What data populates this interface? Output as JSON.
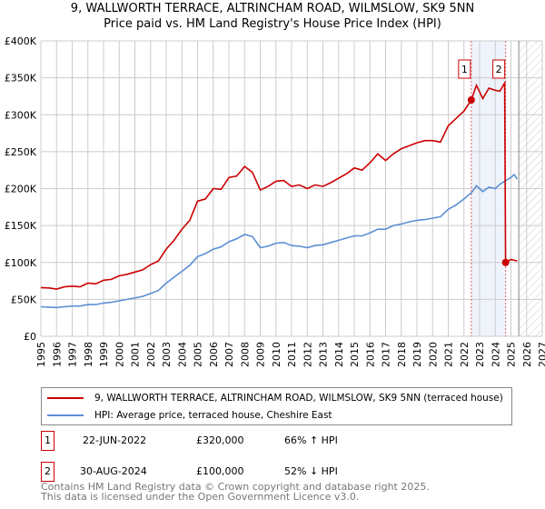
{
  "chart_data": {
    "type": "line",
    "title": "9, WALLWORTH TERRACE, ALTRINCHAM ROAD, WILMSLOW, SK9 5NN",
    "subtitle": "Price paid vs. HM Land Registry's House Price Index (HPI)",
    "xlim": [
      1995,
      2027
    ],
    "ylim": [
      0,
      400000
    ],
    "x_ticks": [
      "1995",
      "1996",
      "1997",
      "1998",
      "1999",
      "2000",
      "2001",
      "2002",
      "2003",
      "2004",
      "2005",
      "2006",
      "2007",
      "2008",
      "2009",
      "2010",
      "2011",
      "2012",
      "2013",
      "2014",
      "2015",
      "2016",
      "2017",
      "2018",
      "2019",
      "2020",
      "2021",
      "2022",
      "2023",
      "2024",
      "2025",
      "2026",
      "2027"
    ],
    "y_ticks": [
      {
        "v": 0,
        "label": "£0"
      },
      {
        "v": 50000,
        "label": "£50K"
      },
      {
        "v": 100000,
        "label": "£100K"
      },
      {
        "v": 150000,
        "label": "£150K"
      },
      {
        "v": 200000,
        "label": "£200K"
      },
      {
        "v": 250000,
        "label": "£250K"
      },
      {
        "v": 300000,
        "label": "£300K"
      },
      {
        "v": 350000,
        "label": "£350K"
      },
      {
        "v": 400000,
        "label": "£400K"
      }
    ],
    "grid": true,
    "shaded_range": [
      2022.47,
      2024.66
    ],
    "data_end": 2025.5,
    "series": [
      {
        "name": "9, WALLWORTH TERRACE, ALTRINCHAM ROAD, WILMSLOW, SK9 5NN (terraced house)",
        "color": "#cc0000",
        "x": [
          1995,
          1995.5,
          1996,
          1996.5,
          1997,
          1997.5,
          1998,
          1998.5,
          1999,
          1999.5,
          2000,
          2000.5,
          2001,
          2001.5,
          2002,
          2002.5,
          2003,
          2003.5,
          2004,
          2004.5,
          2005,
          2005.5,
          2006,
          2006.5,
          2007,
          2007.5,
          2008,
          2008.5,
          2009,
          2009.5,
          2010,
          2010.5,
          2011,
          2011.5,
          2012,
          2012.5,
          2013,
          2013.5,
          2014,
          2014.5,
          2015,
          2015.5,
          2016,
          2016.5,
          2017,
          2017.5,
          2018,
          2018.5,
          2019,
          2019.5,
          2020,
          2020.5,
          2021,
          2021.5,
          2022,
          2022.47,
          2022.8,
          2023.2,
          2023.6,
          2024,
          2024.3,
          2024.6,
          2024.66,
          2025,
          2025.4
        ],
        "y": [
          66000,
          65500,
          64000,
          67000,
          68000,
          67000,
          72000,
          71000,
          76000,
          77000,
          82000,
          84000,
          87000,
          90000,
          97000,
          102000,
          118000,
          130000,
          145000,
          157000,
          183000,
          186000,
          200000,
          199000,
          215000,
          217000,
          230000,
          222000,
          198000,
          203000,
          210000,
          211000,
          203000,
          205000,
          200000,
          205000,
          203000,
          208000,
          214000,
          220000,
          228000,
          225000,
          235000,
          247000,
          238000,
          247000,
          254000,
          258000,
          262000,
          265000,
          265000,
          263000,
          285000,
          295000,
          305000,
          320000,
          340000,
          322000,
          336000,
          333000,
          332000,
          343000,
          100000,
          104000,
          102000
        ]
      },
      {
        "name": "HPI: Average price, terraced house, Cheshire East",
        "color": "#5b8fd4",
        "x": [
          1995,
          1995.5,
          1996,
          1996.5,
          1997,
          1997.5,
          1998,
          1998.5,
          1999,
          1999.5,
          2000,
          2000.5,
          2001,
          2001.5,
          2002,
          2002.5,
          2003,
          2003.5,
          2004,
          2004.5,
          2005,
          2005.5,
          2006,
          2006.5,
          2007,
          2007.5,
          2008,
          2008.5,
          2009,
          2009.5,
          2010,
          2010.5,
          2011,
          2011.5,
          2012,
          2012.5,
          2013,
          2013.5,
          2014,
          2014.5,
          2015,
          2015.5,
          2016,
          2016.5,
          2017,
          2017.5,
          2018,
          2018.5,
          2019,
          2019.5,
          2020,
          2020.5,
          2021,
          2021.5,
          2022,
          2022.5,
          2022.8,
          2023.2,
          2023.6,
          2024,
          2024.3,
          2024.6,
          2025,
          2025.2,
          2025.4
        ],
        "y": [
          40000,
          39500,
          39000,
          40000,
          41000,
          41000,
          43000,
          43000,
          45000,
          46000,
          48000,
          50000,
          52000,
          54000,
          58000,
          62000,
          72000,
          80000,
          88000,
          96000,
          108000,
          112000,
          118000,
          121000,
          128000,
          132000,
          138000,
          135000,
          120000,
          122000,
          126000,
          127000,
          123000,
          122000,
          120000,
          123000,
          124000,
          127000,
          130000,
          133000,
          136000,
          136000,
          140000,
          145000,
          145000,
          150000,
          152000,
          155000,
          157000,
          158000,
          160000,
          162000,
          172000,
          178000,
          186000,
          195000,
          204000,
          196000,
          202000,
          200000,
          206000,
          210000,
          215000,
          219000,
          213000
        ]
      }
    ],
    "annotations": [
      {
        "label": "1",
        "x": 2022.47,
        "y": 320000
      },
      {
        "label": "2",
        "x": 2024.66,
        "y": 100000
      }
    ]
  },
  "legend": {
    "red": "9, WALLWORTH TERRACE, ALTRINCHAM ROAD, WILMSLOW, SK9 5NN (terraced house)",
    "blue": "HPI: Average price, terraced house, Cheshire East"
  },
  "transactions": [
    {
      "num": "1",
      "date": "22-JUN-2022",
      "price": "£320,000",
      "hpi": "66% ↑ HPI"
    },
    {
      "num": "2",
      "date": "30-AUG-2024",
      "price": "£100,000",
      "hpi": "52% ↓ HPI"
    }
  ],
  "footer": {
    "line1": "Contains HM Land Registry data © Crown copyright and database right 2025.",
    "line2": "This data is licensed under the Open Government Licence v3.0."
  }
}
